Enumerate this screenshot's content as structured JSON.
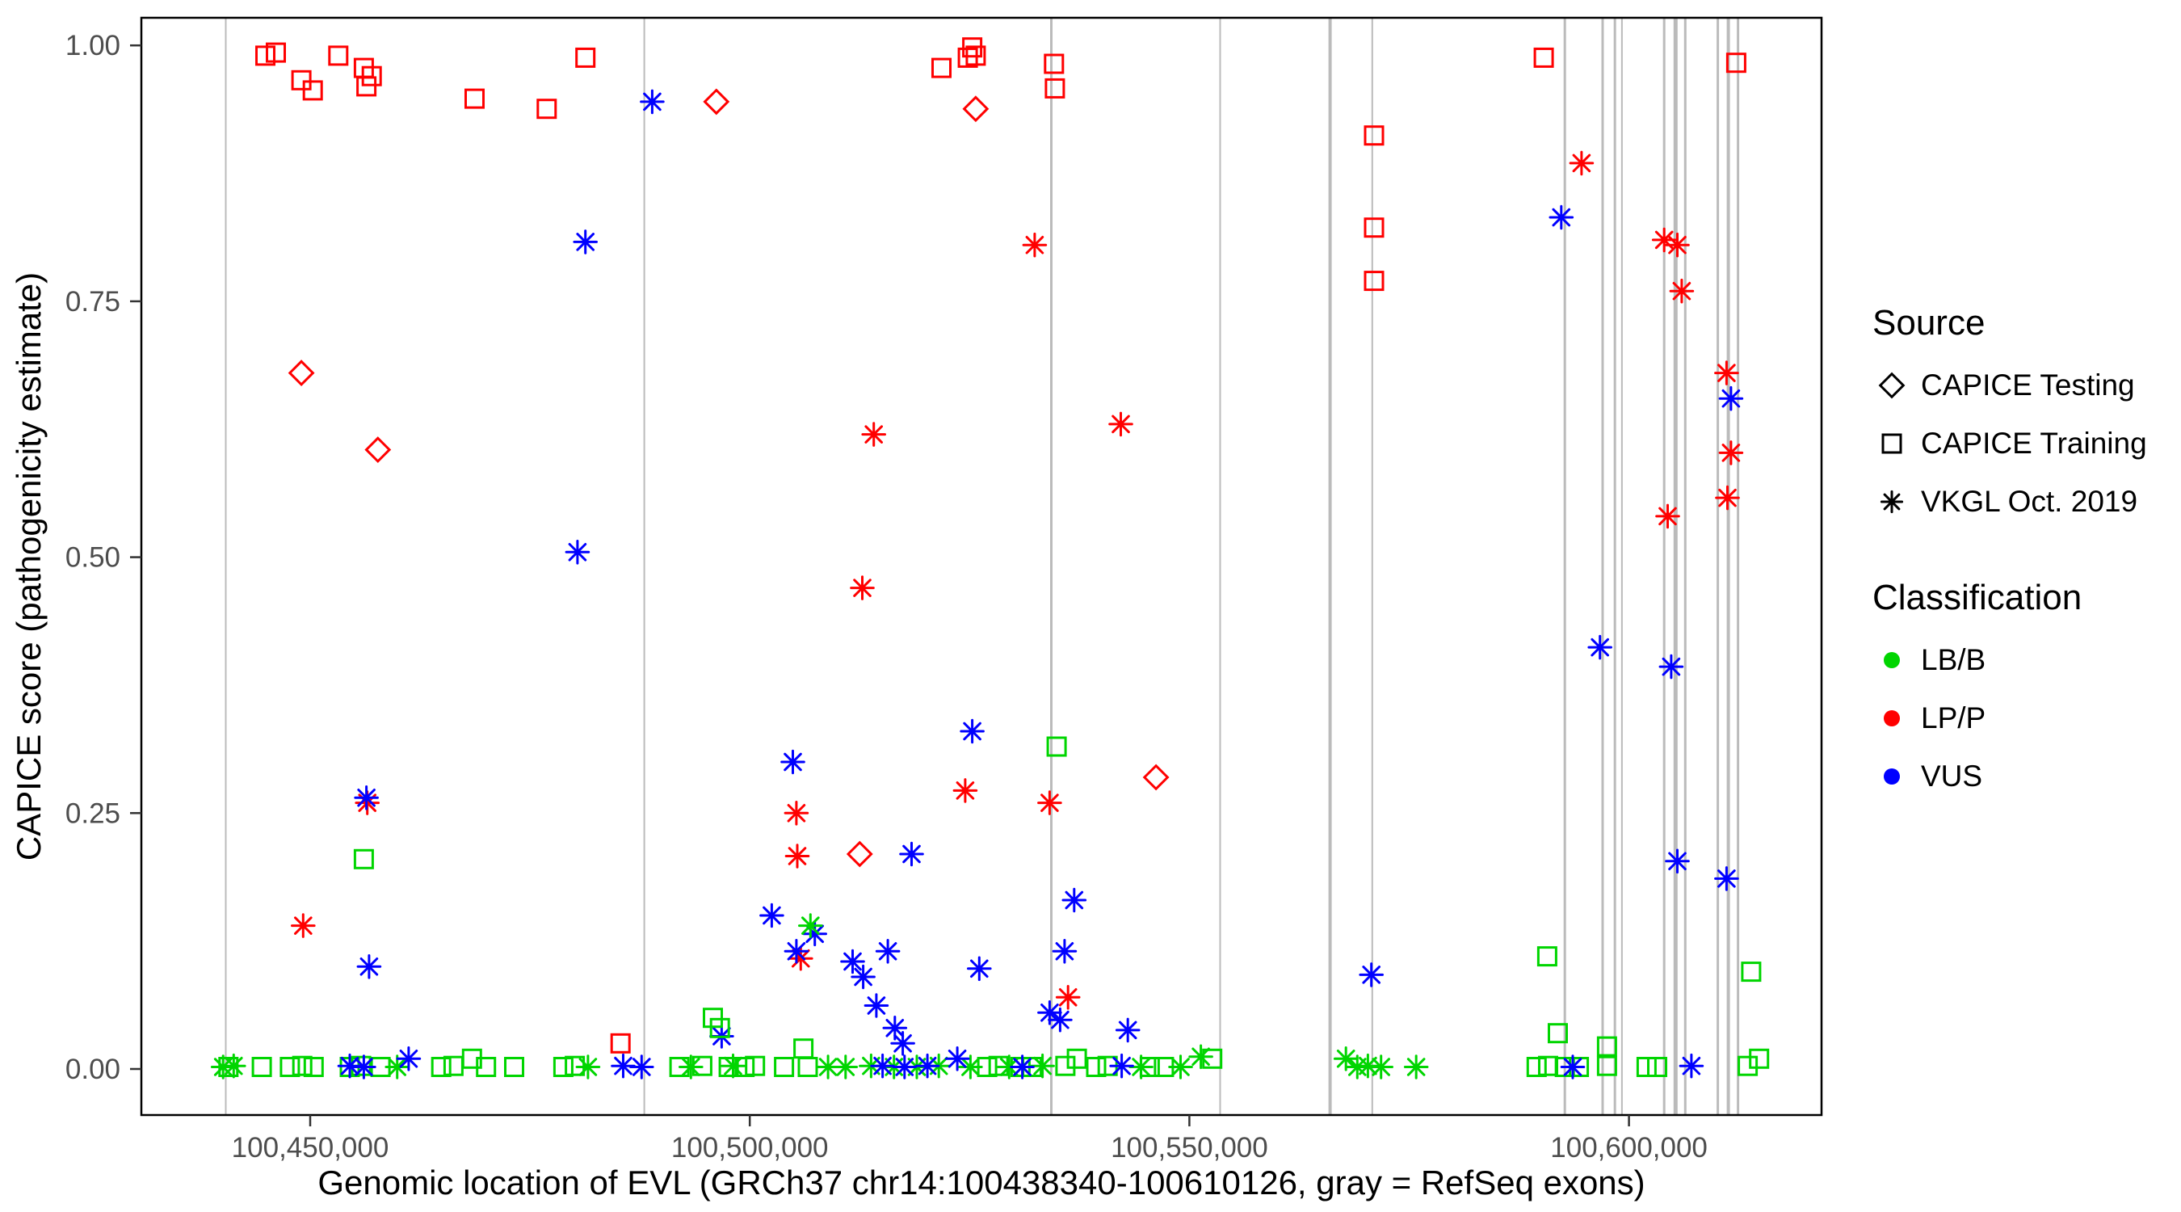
{
  "legend": {
    "source_title": "Source",
    "source_items": [
      {
        "label": "CAPICE Testing",
        "glyph": "diamond"
      },
      {
        "label": "CAPICE Training",
        "glyph": "square"
      },
      {
        "label": "VKGL Oct. 2019",
        "glyph": "asterisk"
      }
    ],
    "classification_title": "Classification",
    "classification_items": [
      {
        "label": "LB/B",
        "color": "#00D500"
      },
      {
        "label": "LP/P",
        "color": "#FF0000"
      },
      {
        "label": "VUS",
        "color": "#0000FF"
      }
    ]
  },
  "chart_data": {
    "type": "scatter",
    "title": "",
    "xlabel": "Genomic location of EVL (GRCh37 chr14:100438340-100610126, gray = RefSeq exons)",
    "ylabel": "CAPICE score (pathogenicity estimate)",
    "xlim": [
      100430800,
      100621900
    ],
    "ylim": [
      -0.045,
      1.027
    ],
    "grid": false,
    "legend_position": "right",
    "x_ticks": [
      {
        "value": 100450000,
        "label": "100,450,000"
      },
      {
        "value": 100500000,
        "label": "100,500,000"
      },
      {
        "value": 100550000,
        "label": "100,550,000"
      },
      {
        "value": 100600000,
        "label": "100,600,000"
      }
    ],
    "y_ticks": [
      {
        "value": 0.0,
        "label": "0.00"
      },
      {
        "value": 0.25,
        "label": "0.25"
      },
      {
        "value": 0.5,
        "label": "0.50"
      },
      {
        "value": 0.75,
        "label": "0.75"
      },
      {
        "value": 1.0,
        "label": "1.00"
      }
    ],
    "point_key": {
      "T": "CAPICE Training",
      "E": "CAPICE Testing",
      "V": "VKGL Oct. 2019",
      "B": "LB/B",
      "P": "LP/P",
      "U": "VUS"
    },
    "shape_by_source": {
      "CAPICE Testing": "open-diamond",
      "CAPICE Training": "open-square",
      "VKGL Oct. 2019": "asterisk"
    },
    "color_by_classification": {
      "LB/B": "#00D500",
      "LP/P": "#FF0000",
      "VUS": "#0000FF"
    },
    "exon_color": "#BBBBBB",
    "exons": [
      [
        100440400,
        2
      ],
      [
        100488000,
        2
      ],
      [
        100534300,
        3
      ],
      [
        100553500,
        2
      ],
      [
        100566000,
        4
      ],
      [
        100570800,
        2
      ],
      [
        100592700,
        3
      ],
      [
        100597000,
        3
      ],
      [
        100598400,
        3
      ],
      [
        100599200,
        2
      ],
      [
        100604000,
        3
      ],
      [
        100605300,
        5
      ],
      [
        100606400,
        3
      ],
      [
        100610100,
        3
      ],
      [
        100611300,
        4
      ],
      [
        100612400,
        3
      ]
    ],
    "points": [
      [
        100444900,
        0.99,
        "T",
        "P"
      ],
      [
        100446100,
        0.993,
        "T",
        "P"
      ],
      [
        100449000,
        0.966,
        "T",
        "P"
      ],
      [
        100450300,
        0.956,
        "T",
        "P"
      ],
      [
        100453200,
        0.99,
        "T",
        "P"
      ],
      [
        100456100,
        0.978,
        "T",
        "P"
      ],
      [
        100456400,
        0.96,
        "T",
        "P"
      ],
      [
        100457000,
        0.97,
        "T",
        "P"
      ],
      [
        100468700,
        0.948,
        "T",
        "P"
      ],
      [
        100476900,
        0.938,
        "T",
        "P"
      ],
      [
        100481300,
        0.988,
        "T",
        "P"
      ],
      [
        100485300,
        0.025,
        "T",
        "P"
      ],
      [
        100521800,
        0.978,
        "T",
        "P"
      ],
      [
        100524800,
        0.988,
        "T",
        "P"
      ],
      [
        100525300,
        0.998,
        "T",
        "P"
      ],
      [
        100525700,
        0.99,
        "T",
        "P"
      ],
      [
        100534600,
        0.982,
        "T",
        "P"
      ],
      [
        100534700,
        0.958,
        "T",
        "P"
      ],
      [
        100571000,
        0.912,
        "T",
        "P"
      ],
      [
        100571000,
        0.822,
        "T",
        "P"
      ],
      [
        100571000,
        0.77,
        "T",
        "P"
      ],
      [
        100590300,
        0.988,
        "T",
        "P"
      ],
      [
        100612200,
        0.983,
        "T",
        "P"
      ],
      [
        100449000,
        0.68,
        "E",
        "P"
      ],
      [
        100457700,
        0.605,
        "E",
        "P"
      ],
      [
        100496200,
        0.945,
        "E",
        "P"
      ],
      [
        100525700,
        0.938,
        "E",
        "P"
      ],
      [
        100512500,
        0.21,
        "E",
        "P"
      ],
      [
        100546200,
        0.285,
        "E",
        "P"
      ],
      [
        100449200,
        0.14,
        "V",
        "P"
      ],
      [
        100456500,
        0.26,
        "V",
        "P"
      ],
      [
        100505300,
        0.25,
        "V",
        "P"
      ],
      [
        100505400,
        0.208,
        "V",
        "P"
      ],
      [
        100505800,
        0.108,
        "V",
        "P"
      ],
      [
        100512800,
        0.47,
        "V",
        "P"
      ],
      [
        100514100,
        0.62,
        "V",
        "P"
      ],
      [
        100524500,
        0.272,
        "V",
        "P"
      ],
      [
        100532400,
        0.805,
        "V",
        "P"
      ],
      [
        100534100,
        0.26,
        "V",
        "P"
      ],
      [
        100536200,
        0.07,
        "V",
        "P"
      ],
      [
        100542200,
        0.63,
        "V",
        "P"
      ],
      [
        100594600,
        0.885,
        "V",
        "P"
      ],
      [
        100604000,
        0.81,
        "V",
        "P"
      ],
      [
        100605500,
        0.805,
        "V",
        "P"
      ],
      [
        100606000,
        0.76,
        "V",
        "P"
      ],
      [
        100604400,
        0.54,
        "V",
        "P"
      ],
      [
        100611100,
        0.68,
        "V",
        "P"
      ],
      [
        100611600,
        0.602,
        "V",
        "P"
      ],
      [
        100611200,
        0.558,
        "V",
        "P"
      ],
      [
        100488900,
        0.945,
        "V",
        "U"
      ],
      [
        100481300,
        0.808,
        "V",
        "U"
      ],
      [
        100480400,
        0.505,
        "V",
        "U"
      ],
      [
        100456400,
        0.265,
        "V",
        "U"
      ],
      [
        100456700,
        0.1,
        "V",
        "U"
      ],
      [
        100504900,
        0.3,
        "V",
        "U"
      ],
      [
        100502500,
        0.15,
        "V",
        "U"
      ],
      [
        100505300,
        0.115,
        "V",
        "U"
      ],
      [
        100507400,
        0.132,
        "V",
        "U"
      ],
      [
        100511700,
        0.105,
        "V",
        "U"
      ],
      [
        100512900,
        0.09,
        "V",
        "U"
      ],
      [
        100515700,
        0.115,
        "V",
        "U"
      ],
      [
        100514400,
        0.062,
        "V",
        "U"
      ],
      [
        100516500,
        0.04,
        "V",
        "U"
      ],
      [
        100517400,
        0.025,
        "V",
        "U"
      ],
      [
        100518400,
        0.21,
        "V",
        "U"
      ],
      [
        100525300,
        0.33,
        "V",
        "U"
      ],
      [
        100526100,
        0.098,
        "V",
        "U"
      ],
      [
        100536900,
        0.165,
        "V",
        "U"
      ],
      [
        100535800,
        0.115,
        "V",
        "U"
      ],
      [
        100534100,
        0.055,
        "V",
        "U"
      ],
      [
        100535300,
        0.048,
        "V",
        "U"
      ],
      [
        100543000,
        0.038,
        "V",
        "U"
      ],
      [
        100570700,
        0.092,
        "V",
        "U"
      ],
      [
        100496800,
        0.032,
        "V",
        "U"
      ],
      [
        100592300,
        0.832,
        "V",
        "U"
      ],
      [
        100596700,
        0.412,
        "V",
        "U"
      ],
      [
        100604800,
        0.393,
        "V",
        "U"
      ],
      [
        100605500,
        0.203,
        "V",
        "U"
      ],
      [
        100611100,
        0.186,
        "V",
        "U"
      ],
      [
        100611600,
        0.655,
        "V",
        "U"
      ],
      [
        100456100,
        0.205,
        "T",
        "B"
      ],
      [
        100534900,
        0.315,
        "T",
        "B"
      ],
      [
        100495800,
        0.05,
        "T",
        "B"
      ],
      [
        100496600,
        0.04,
        "T",
        "B"
      ],
      [
        100590700,
        0.11,
        "T",
        "B"
      ],
      [
        100591900,
        0.035,
        "T",
        "B"
      ],
      [
        100597500,
        0.022,
        "T",
        "B"
      ],
      [
        100613900,
        0.095,
        "T",
        "B"
      ],
      [
        100506100,
        0.02,
        "T",
        "B"
      ],
      [
        100506900,
        0.14,
        "V",
        "B"
      ],
      [
        100551300,
        0.012,
        "V",
        "B"
      ],
      [
        100440700,
        0.002,
        "T",
        "B"
      ],
      [
        100444500,
        0.002,
        "T",
        "B"
      ],
      [
        100447700,
        0.002,
        "T",
        "B"
      ],
      [
        100449100,
        0.003,
        "T",
        "B"
      ],
      [
        100450400,
        0.002,
        "T",
        "B"
      ],
      [
        100454500,
        0.002,
        "T",
        "B"
      ],
      [
        100455800,
        0.003,
        "T",
        "B"
      ],
      [
        100458000,
        0.002,
        "T",
        "B"
      ],
      [
        100464900,
        0.002,
        "T",
        "B"
      ],
      [
        100466300,
        0.003,
        "T",
        "B"
      ],
      [
        100468400,
        0.01,
        "T",
        "B"
      ],
      [
        100470000,
        0.002,
        "T",
        "B"
      ],
      [
        100473200,
        0.002,
        "T",
        "B"
      ],
      [
        100478800,
        0.002,
        "T",
        "B"
      ],
      [
        100480100,
        0.003,
        "T",
        "B"
      ],
      [
        100492000,
        0.002,
        "T",
        "B"
      ],
      [
        100494600,
        0.003,
        "T",
        "B"
      ],
      [
        100497600,
        0.002,
        "T",
        "B"
      ],
      [
        100499400,
        0.002,
        "T",
        "B"
      ],
      [
        100500600,
        0.003,
        "T",
        "B"
      ],
      [
        100503900,
        0.002,
        "T",
        "B"
      ],
      [
        100506600,
        0.002,
        "T",
        "B"
      ],
      [
        100527000,
        0.002,
        "T",
        "B"
      ],
      [
        100528300,
        0.003,
        "T",
        "B"
      ],
      [
        100530800,
        0.002,
        "T",
        "B"
      ],
      [
        100532100,
        0.002,
        "T",
        "B"
      ],
      [
        100535900,
        0.003,
        "T",
        "B"
      ],
      [
        100537200,
        0.01,
        "T",
        "B"
      ],
      [
        100539400,
        0.002,
        "T",
        "B"
      ],
      [
        100540700,
        0.003,
        "T",
        "B"
      ],
      [
        100545500,
        0.002,
        "T",
        "B"
      ],
      [
        100547100,
        0.002,
        "T",
        "B"
      ],
      [
        100552600,
        0.01,
        "T",
        "B"
      ],
      [
        100589500,
        0.002,
        "T",
        "B"
      ],
      [
        100590800,
        0.003,
        "T",
        "B"
      ],
      [
        100592700,
        0.002,
        "T",
        "B"
      ],
      [
        100594300,
        0.002,
        "T",
        "B"
      ],
      [
        100597500,
        0.003,
        "T",
        "B"
      ],
      [
        100602000,
        0.002,
        "T",
        "B"
      ],
      [
        100603200,
        0.002,
        "T",
        "B"
      ],
      [
        100613500,
        0.003,
        "T",
        "B"
      ],
      [
        100614800,
        0.01,
        "T",
        "B"
      ],
      [
        100440100,
        0.002,
        "V",
        "B"
      ],
      [
        100441300,
        0.003,
        "V",
        "B"
      ],
      [
        100459900,
        0.002,
        "V",
        "B"
      ],
      [
        100481600,
        0.002,
        "V",
        "B"
      ],
      [
        100493300,
        0.002,
        "V",
        "B"
      ],
      [
        100498100,
        0.003,
        "V",
        "B"
      ],
      [
        100508900,
        0.002,
        "V",
        "B"
      ],
      [
        100510900,
        0.002,
        "V",
        "B"
      ],
      [
        100513800,
        0.003,
        "V",
        "B"
      ],
      [
        100516400,
        0.002,
        "V",
        "B"
      ],
      [
        100519000,
        0.002,
        "V",
        "B"
      ],
      [
        100521500,
        0.003,
        "V",
        "B"
      ],
      [
        100525100,
        0.002,
        "V",
        "B"
      ],
      [
        100529500,
        0.002,
        "V",
        "B"
      ],
      [
        100533300,
        0.003,
        "V",
        "B"
      ],
      [
        100544500,
        0.002,
        "V",
        "B"
      ],
      [
        100549000,
        0.002,
        "V",
        "B"
      ],
      [
        100567800,
        0.01,
        "V",
        "B"
      ],
      [
        100569100,
        0.002,
        "V",
        "B"
      ],
      [
        100570300,
        0.003,
        "V",
        "B"
      ],
      [
        100571800,
        0.002,
        "V",
        "B"
      ],
      [
        100575800,
        0.002,
        "V",
        "B"
      ],
      [
        100454500,
        0.003,
        "V",
        "U"
      ],
      [
        100456100,
        0.002,
        "V",
        "U"
      ],
      [
        100461200,
        0.01,
        "V",
        "U"
      ],
      [
        100485600,
        0.003,
        "V",
        "U"
      ],
      [
        100487700,
        0.002,
        "V",
        "U"
      ],
      [
        100515100,
        0.003,
        "V",
        "U"
      ],
      [
        100517600,
        0.002,
        "V",
        "U"
      ],
      [
        100520200,
        0.003,
        "V",
        "U"
      ],
      [
        100523600,
        0.01,
        "V",
        "U"
      ],
      [
        100531000,
        0.002,
        "V",
        "U"
      ],
      [
        100542300,
        0.003,
        "V",
        "U"
      ],
      [
        100593600,
        0.002,
        "V",
        "U"
      ],
      [
        100607100,
        0.003,
        "V",
        "U"
      ]
    ]
  }
}
